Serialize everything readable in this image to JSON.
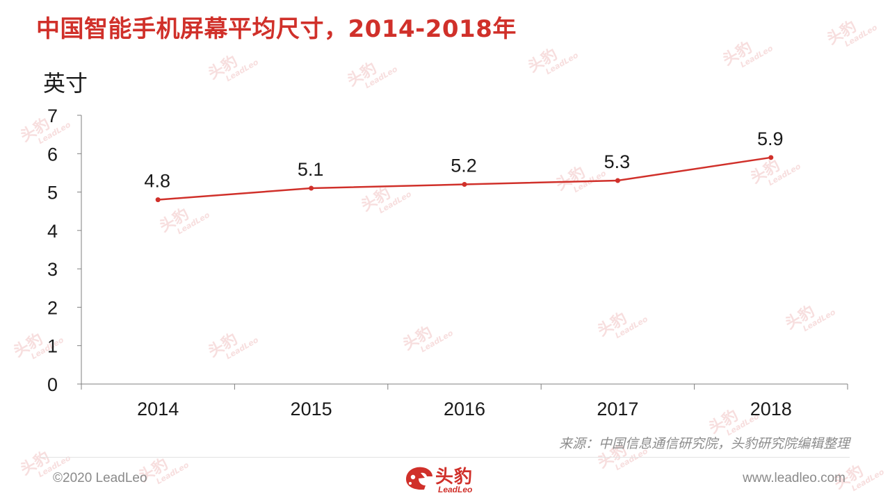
{
  "title": "中国智能手机屏幕平均尺寸，2014-2018年",
  "unit_label": "英寸",
  "source": "来源：中国信息通信研究院，头豹研究院编辑整理",
  "footer": {
    "copyright": "©2020 LeadLeo",
    "website": "www.leadleo.com",
    "logo_cn": "头豹",
    "logo_en": "LeadLeo"
  },
  "watermark": {
    "cn": "头豹",
    "en": "LeadLeo"
  },
  "colors": {
    "accent": "#d0302a",
    "axis": "#7f7f7f",
    "watermark": "#f7dede"
  },
  "chart_data": {
    "type": "line",
    "title": "中国智能手机屏幕平均尺寸，2014-2018年",
    "ylabel": "英寸",
    "xlabel": "",
    "categories": [
      "2014",
      "2015",
      "2016",
      "2017",
      "2018"
    ],
    "series": [
      {
        "values": [
          4.8,
          5.1,
          5.2,
          5.3,
          5.9
        ]
      }
    ],
    "data_labels": [
      "4.8",
      "5.1",
      "5.2",
      "5.3",
      "5.9"
    ],
    "ylim": [
      0,
      7
    ],
    "yticks": [
      "0",
      "1",
      "2",
      "3",
      "4",
      "5",
      "6",
      "7"
    ],
    "grid": false,
    "legend": "none"
  }
}
